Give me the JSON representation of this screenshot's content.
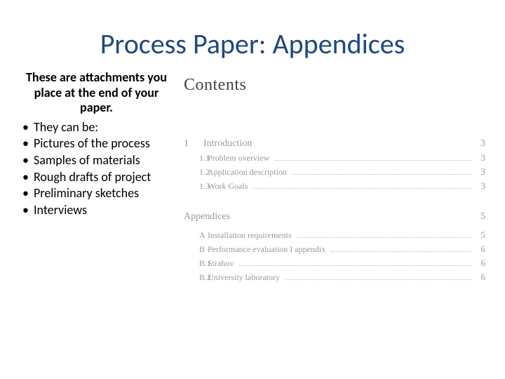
{
  "title": {
    "text": "Process Paper: Appendices",
    "color": "#1f497d"
  },
  "left": {
    "intro": "These are attachments you place at the end of your paper.",
    "bullets": [
      "They can be:",
      "Pictures of the process",
      "Samples of materials",
      "Rough drafts of project",
      "Preliminary sketches",
      "Interviews"
    ],
    "text_color": "#000000"
  },
  "toc": {
    "heading": "Contents",
    "section1": {
      "num": "1",
      "label": "Introduction",
      "page": "3",
      "items": [
        {
          "num": "1.1",
          "label": "Problem overview",
          "page": "3"
        },
        {
          "num": "1.2",
          "label": "Application description",
          "page": "3"
        },
        {
          "num": "1.3",
          "label": "Work Goals",
          "page": "3"
        }
      ]
    },
    "section2": {
      "heading": "Appendices",
      "page": "5",
      "items": [
        {
          "num": "A",
          "label": "Installation requirements",
          "page": "5"
        },
        {
          "num": "B",
          "label": "Performance evaluation I appendix",
          "page": "6"
        },
        {
          "num": "B.1",
          "label": "Strahov",
          "page": "6"
        },
        {
          "num": "B.2",
          "label": "University laboratory",
          "page": "6"
        }
      ]
    },
    "text_color": "#999999"
  }
}
